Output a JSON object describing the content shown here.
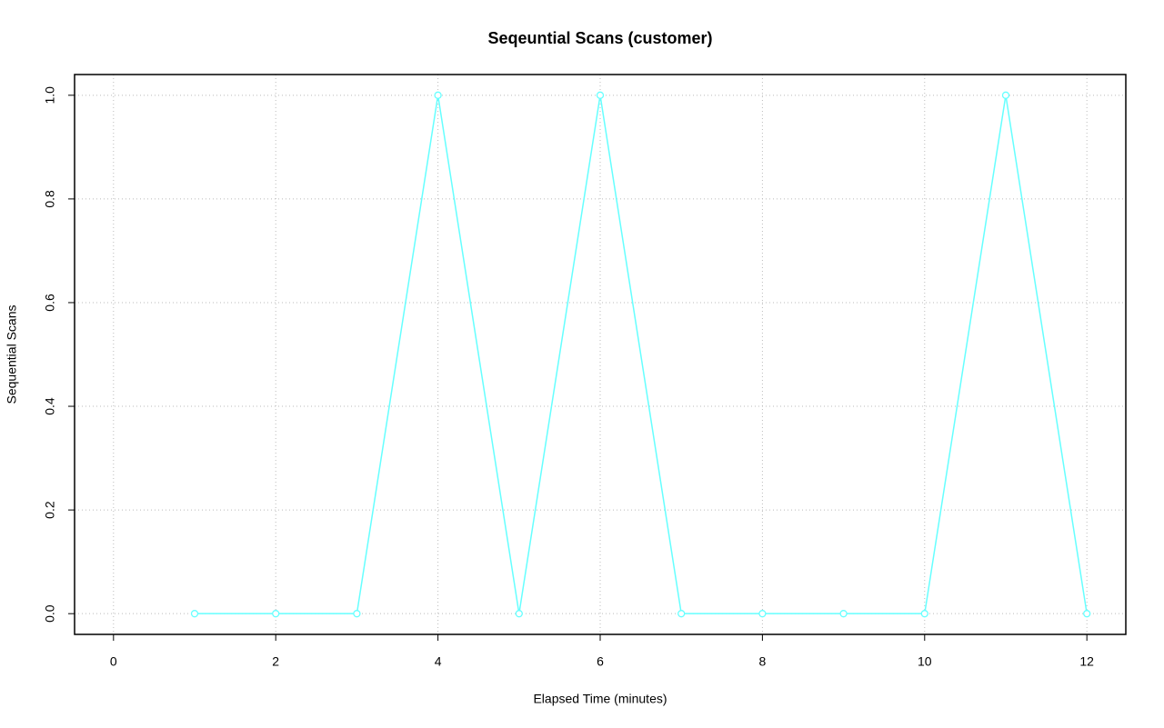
{
  "chart_data": {
    "type": "line",
    "title": "Seqeuntial Scans (customer)",
    "x_label": "Elapsed Time (minutes)",
    "y_label": "Sequential Scans",
    "x": [
      1,
      2,
      3,
      4,
      5,
      6,
      7,
      8,
      9,
      10,
      11,
      12
    ],
    "values": [
      0,
      0,
      0,
      1,
      0,
      1,
      0,
      0,
      0,
      0,
      1,
      0
    ],
    "color": "#66ffff",
    "xlim": [
      -0.48,
      12.48
    ],
    "xticks": [
      0,
      2,
      4,
      6,
      8,
      10,
      12
    ],
    "ylim": [
      -0.04,
      1.04
    ],
    "yticks": [
      {
        "value": 0,
        "label": "0.0"
      },
      0.2,
      0.4,
      0.6,
      0.8,
      {
        "value": 1,
        "label": "1.0"
      }
    ],
    "grid": true
  }
}
